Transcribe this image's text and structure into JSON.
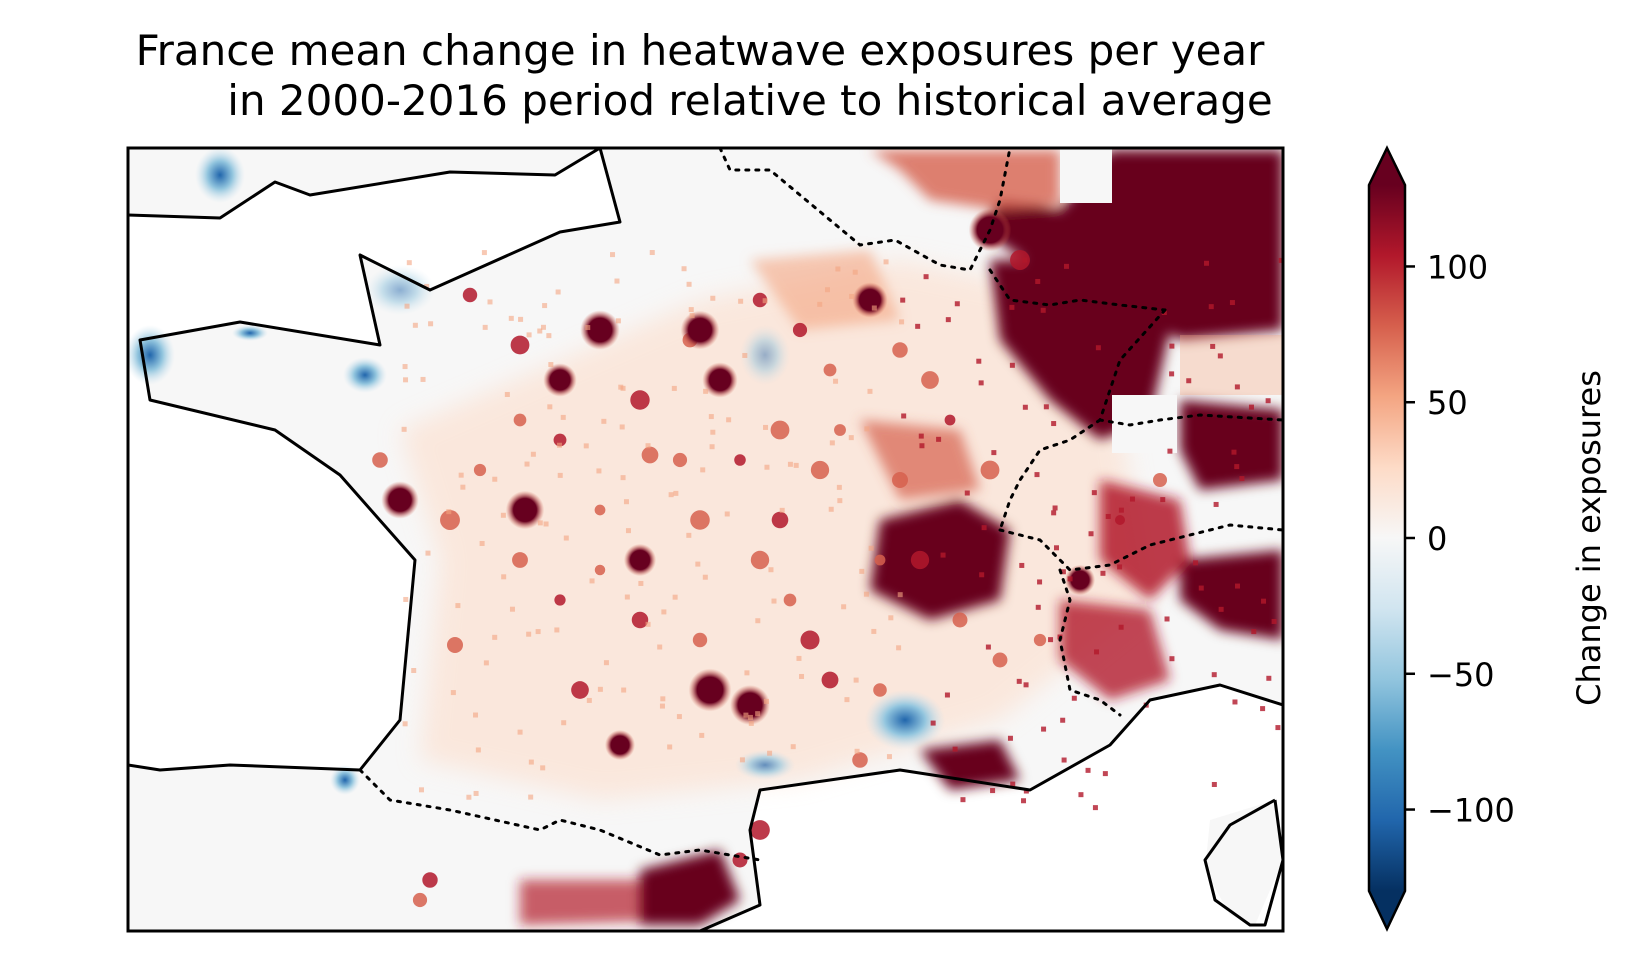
{
  "title_line1": "France mean change in heatwave exposures per year",
  "title_line2": "in 2000-2016 period relative to historical average",
  "colorbar": {
    "label": "Change in exposures",
    "colormap": "RdBu_r",
    "vmin": -130,
    "vmax": 130,
    "extend": "both",
    "ticks": [
      100,
      50,
      0,
      -50,
      -100
    ],
    "tick_labels": [
      "100",
      "50",
      "0",
      "−50",
      "−100"
    ]
  },
  "colors": {
    "strong_positive": "#67001f",
    "positive": "#d6604d",
    "neutral": "#f7f7f7",
    "negative": "#4393c3",
    "strong_negative": "#053061",
    "outline": "#000000"
  }
}
